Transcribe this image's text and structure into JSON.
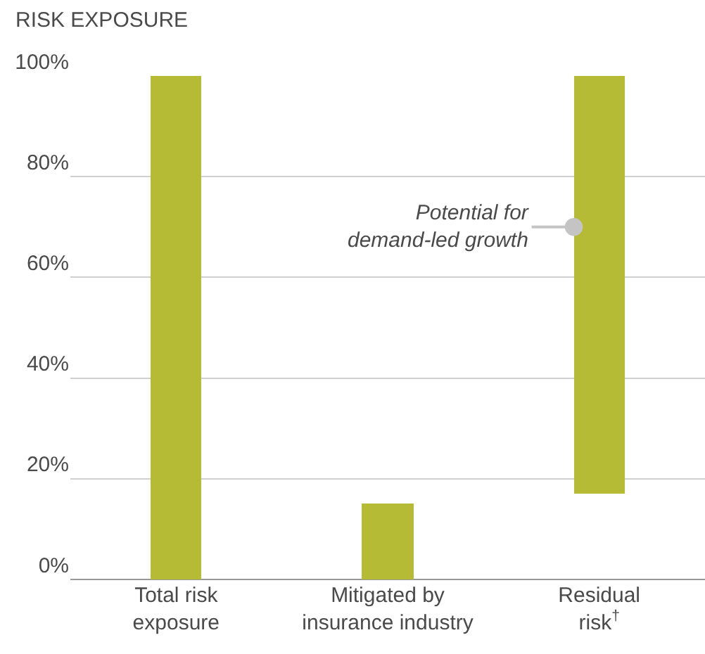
{
  "chart_data": {
    "type": "bar",
    "ylabel": "RISK EXPOSURE",
    "categories": [
      "Total risk exposure",
      "Mitigated by insurance industry",
      "Residual risk$^{†}$"
    ],
    "values": [
      100,
      15,
      83
    ],
    "base": [
      0,
      0,
      17
    ],
    "color": "#b5bb35",
    "ylim": [
      0,
      100
    ],
    "yticks": [
      {
        "value": 0,
        "label": "0%"
      },
      {
        "value": 20,
        "label": "20%"
      },
      {
        "value": 40,
        "label": "40%"
      },
      {
        "value": 60,
        "label": "60%"
      },
      {
        "value": 80,
        "label": "80%"
      },
      {
        "value": 100,
        "label": "100%"
      }
    ],
    "grid": "y",
    "annotations": [
      "Potential for demand-led growth"
    ]
  }
}
